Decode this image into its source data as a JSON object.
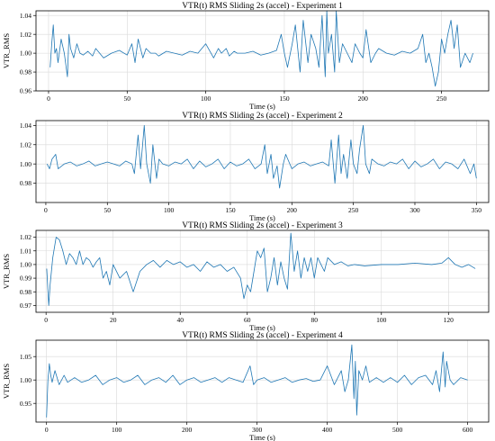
{
  "chart_data": [
    {
      "type": "line",
      "title": "VTR(t) RMS Sliding 2s (accel) - Experiment 1",
      "xlabel": "Time (s)",
      "ylabel": "VTR_RMS",
      "xlim": [
        -8,
        280
      ],
      "ylim": [
        0.96,
        1.045
      ],
      "xticks": [
        0,
        50,
        100,
        150,
        200,
        250
      ],
      "yticks": [
        0.96,
        0.98,
        1.0,
        1.02,
        1.04
      ],
      "ytick_labels": [
        "0.96",
        "0.98",
        "1.00",
        "1.02",
        "1.04"
      ],
      "grid": true,
      "series": [
        {
          "x": [
            1,
            2,
            3,
            4,
            5,
            6,
            8,
            10,
            12,
            13,
            14,
            16,
            18,
            20,
            22,
            25,
            28,
            30,
            35,
            40,
            45,
            50,
            53,
            55,
            57,
            60,
            62,
            65,
            68,
            70,
            75,
            80,
            85,
            90,
            95,
            100,
            105,
            108,
            110,
            113,
            115,
            118,
            120,
            125,
            130,
            135,
            140,
            145,
            148,
            150,
            152,
            155,
            157,
            160,
            162,
            165,
            167,
            170,
            172,
            174,
            176,
            177,
            178,
            180,
            182,
            183,
            185,
            187,
            190,
            193,
            195,
            198,
            200,
            202,
            205,
            208,
            210,
            215,
            220,
            225,
            230,
            235,
            238,
            240,
            242,
            244,
            246,
            248,
            250,
            252,
            254,
            256,
            258,
            260,
            262,
            265,
            268,
            270
          ],
          "y": [
            0.985,
            1.01,
            1.03,
            1.0,
            1.005,
            0.99,
            1.015,
            1.0,
            0.975,
            1.02,
            1.005,
            0.995,
            1.01,
            1.0,
            0.998,
            1.002,
            0.997,
            1.005,
            0.995,
            1.0,
            1.003,
            0.998,
            1.01,
            0.99,
            1.015,
            0.995,
            1.005,
            1.0,
            1.0,
            0.997,
            1.002,
            1.0,
            0.998,
            1.002,
            1.0,
            1.01,
            0.995,
            1.005,
            1.0,
            1.005,
            0.997,
            1.002,
            1.0,
            1.0,
            1.002,
            0.998,
            1.0,
            1.003,
            1.02,
            1.0,
            0.985,
            1.01,
            1.03,
            0.98,
            1.035,
            0.99,
            1.02,
            1.005,
            0.985,
            1.04,
            0.975,
            1.045,
            1.0,
            1.02,
            0.98,
            1.045,
            0.99,
            1.01,
            1.0,
            0.99,
            1.01,
            1.0,
            0.995,
            1.025,
            0.99,
            1.0,
            1.005,
            1.0,
            0.998,
            1.002,
            1.0,
            1.005,
            1.02,
            0.99,
            1.0,
            0.985,
            0.965,
            0.98,
            1.015,
            1.0,
            1.02,
            1.035,
            1.005,
            1.03,
            0.985,
            1.0,
            0.99,
            1.0
          ]
        }
      ]
    },
    {
      "type": "line",
      "title": "VTR(t) RMS Sliding 2s (accel) - Experiment 2",
      "xlabel": "Time (s)",
      "ylabel": "",
      "xlim": [
        -8,
        360
      ],
      "ylim": [
        0.96,
        1.045
      ],
      "xticks": [
        0,
        50,
        100,
        150,
        200,
        250,
        300,
        350
      ],
      "yticks": [
        0.98,
        1.0,
        1.02,
        1.04
      ],
      "ytick_labels": [
        "0.98",
        "1.00",
        "1.02",
        "1.04"
      ],
      "grid": true,
      "series": [
        {
          "x": [
            1,
            3,
            5,
            8,
            10,
            15,
            20,
            25,
            30,
            35,
            40,
            45,
            50,
            55,
            60,
            65,
            70,
            72,
            75,
            77,
            80,
            82,
            85,
            87,
            90,
            92,
            95,
            100,
            105,
            110,
            115,
            120,
            125,
            130,
            135,
            140,
            145,
            150,
            155,
            160,
            165,
            170,
            175,
            178,
            180,
            183,
            185,
            188,
            190,
            193,
            195,
            200,
            205,
            210,
            215,
            220,
            225,
            230,
            232,
            235,
            238,
            240,
            242,
            245,
            248,
            250,
            253,
            255,
            258,
            260,
            263,
            265,
            270,
            275,
            280,
            285,
            290,
            295,
            300,
            305,
            310,
            315,
            320,
            325,
            330,
            335,
            340,
            345,
            348,
            350
          ],
          "y": [
            1.0,
            0.995,
            1.005,
            1.01,
            0.995,
            1.0,
            1.002,
            0.998,
            1.0,
            1.003,
            0.998,
            1.0,
            1.002,
            1.0,
            0.998,
            1.003,
            1.0,
            0.99,
            1.03,
            0.995,
            1.04,
            1.0,
            0.98,
            1.02,
            0.985,
            1.005,
            1.0,
            0.998,
            1.002,
            1.0,
            1.005,
            0.995,
            1.003,
            0.997,
            1.0,
            1.005,
            0.995,
            1.002,
            0.998,
            1.0,
            1.005,
            0.995,
            1.0,
            1.02,
            0.99,
            1.01,
            0.985,
            0.998,
            0.975,
            1.0,
            1.01,
            0.995,
            1.0,
            1.002,
            0.998,
            1.0,
            1.002,
            0.998,
            1.025,
            0.98,
            1.03,
            0.99,
            1.01,
            0.985,
            1.025,
            1.0,
            0.99,
            1.015,
            1.04,
            1.0,
            0.99,
            1.005,
            1.0,
            0.998,
            1.002,
            1.0,
            1.005,
            0.995,
            1.003,
            0.997,
            1.0,
            1.005,
            0.995,
            1.002,
            1.0,
            0.995,
            1.005,
            0.99,
            1.0,
            0.985
          ]
        }
      ]
    },
    {
      "type": "line",
      "title": "VTR(t) RMS Sliding 2s (accel) - Experiment 3",
      "xlabel": "Time (s)",
      "ylabel": "VTR_RMS",
      "xlim": [
        -3,
        132
      ],
      "ylim": [
        0.965,
        1.025
      ],
      "xticks": [
        0,
        20,
        40,
        60,
        80,
        100,
        120
      ],
      "yticks": [
        0.97,
        0.98,
        0.99,
        1.0,
        1.01,
        1.02
      ],
      "ytick_labels": [
        "0.97",
        "0.98",
        "0.99",
        "1.00",
        "1.01",
        "1.02"
      ],
      "grid": true,
      "series": [
        {
          "x": [
            0.2,
            0.8,
            1.2,
            2,
            3,
            4,
            5,
            6,
            7,
            8,
            9,
            10,
            11,
            12,
            13,
            14,
            15,
            16,
            17,
            18,
            19,
            20,
            22,
            24,
            26,
            28,
            30,
            32,
            34,
            36,
            38,
            40,
            42,
            44,
            46,
            48,
            50,
            52,
            54,
            56,
            58,
            59,
            60,
            61,
            62,
            63,
            64,
            65,
            66,
            67,
            68,
            69,
            70,
            71,
            72,
            73,
            74,
            75,
            76,
            77,
            78,
            79,
            80,
            81,
            82,
            83,
            84,
            86,
            88,
            90,
            92,
            95,
            100,
            105,
            110,
            115,
            118,
            120,
            122,
            124,
            126,
            128
          ],
          "y": [
            0.997,
            0.97,
            0.985,
            1.005,
            1.02,
            1.018,
            1.01,
            1.0,
            1.008,
            1.005,
            1.0,
            1.01,
            1.0,
            1.005,
            1.003,
            0.998,
            1.002,
            1.005,
            0.99,
            0.995,
            0.985,
            1.0,
            0.99,
            0.995,
            0.98,
            0.995,
            1.0,
            1.003,
            0.998,
            1.003,
            1.0,
            1.002,
            0.998,
            1.0,
            0.995,
            1.002,
            0.998,
            1.0,
            0.995,
            0.998,
            0.99,
            0.975,
            0.985,
            0.98,
            0.995,
            1.01,
            1.005,
            1.012,
            0.98,
            0.99,
            1.005,
            0.985,
            1.002,
            0.99,
            0.982,
            1.023,
            0.995,
            1.01,
            0.99,
            1.005,
            0.995,
            1.005,
            0.99,
            1.005,
            1.0,
            0.995,
            1.005,
            1.0,
            1.002,
            0.999,
            1.0,
            0.999,
            1.0,
            1.0,
            1.001,
            1.0,
            1.001,
            1.005,
            1.0,
            0.998,
            1.0,
            0.997
          ]
        }
      ]
    },
    {
      "type": "line",
      "title": "VTR(t) RMS Sliding 2s (accel) - Experiment 4",
      "xlabel": "Time (s)",
      "ylabel": "VTR_RMS",
      "xlim": [
        -15,
        630
      ],
      "ylim": [
        0.91,
        1.085
      ],
      "xticks": [
        0,
        100,
        200,
        300,
        400,
        500,
        600
      ],
      "yticks": [
        0.95,
        1.0,
        1.05
      ],
      "ytick_labels": [
        "0.95",
        "1.00",
        "1.05"
      ],
      "grid": true,
      "series": [
        {
          "x": [
            0,
            2,
            4,
            6,
            8,
            12,
            18,
            25,
            30,
            40,
            50,
            60,
            70,
            80,
            90,
            100,
            110,
            120,
            130,
            140,
            150,
            160,
            170,
            180,
            190,
            200,
            210,
            220,
            230,
            240,
            250,
            260,
            270,
            280,
            290,
            295,
            300,
            310,
            320,
            330,
            340,
            350,
            360,
            370,
            380,
            390,
            400,
            410,
            420,
            425,
            430,
            435,
            438,
            440,
            442,
            445,
            450,
            455,
            460,
            470,
            480,
            490,
            500,
            510,
            520,
            530,
            540,
            550,
            555,
            560,
            565,
            568,
            570,
            575,
            580,
            590,
            600
          ],
          "y": [
            0.92,
            1.0,
            1.035,
            1.01,
            0.995,
            1.02,
            0.99,
            1.01,
            0.995,
            1.005,
            0.995,
            1.0,
            1.01,
            0.99,
            1.0,
            1.005,
            0.995,
            1.0,
            1.01,
            0.99,
            1.0,
            1.005,
            0.995,
            1.01,
            0.99,
            1.0,
            1.005,
            0.995,
            1.0,
            1.005,
            0.995,
            1.005,
            1.0,
            0.995,
            1.03,
            0.99,
            1.0,
            1.005,
            0.995,
            1.0,
            1.005,
            0.995,
            1.0,
            1.003,
            0.997,
            1.0,
            1.03,
            0.99,
            1.02,
            0.975,
            1.0,
            1.075,
            0.96,
            1.04,
            0.925,
            1.02,
            1.0,
            1.03,
            0.995,
            1.005,
            0.995,
            1.005,
            0.995,
            1.01,
            0.99,
            1.005,
            1.01,
            0.99,
            1.02,
            0.975,
            1.06,
            0.985,
            1.04,
            1.0,
            0.99,
            1.005,
            1.0
          ]
        }
      ]
    }
  ]
}
